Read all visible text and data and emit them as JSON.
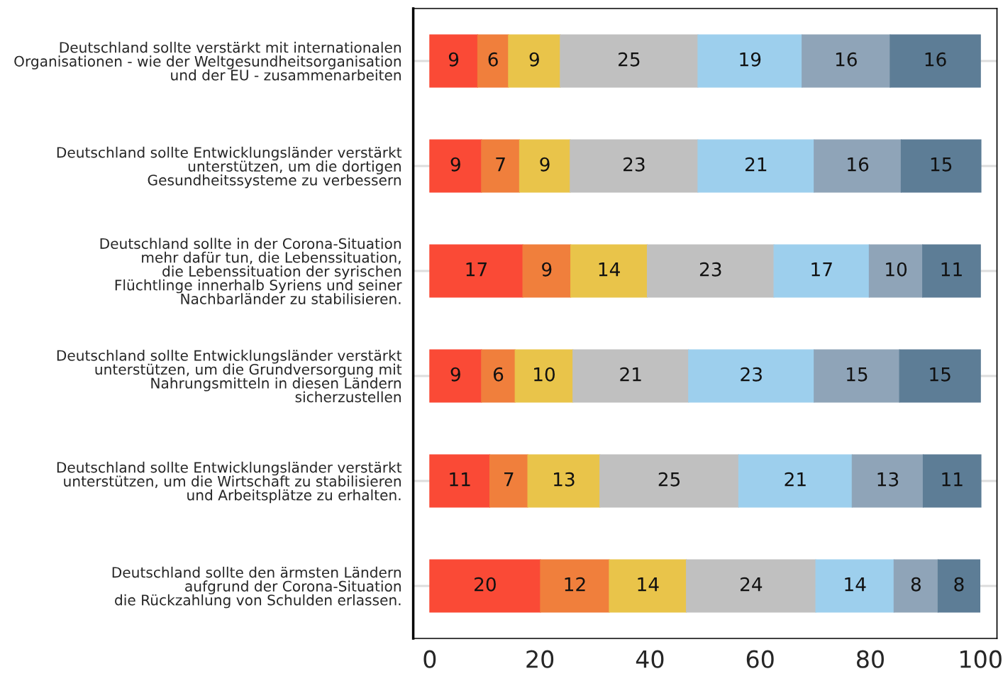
{
  "chart_data": {
    "type": "bar",
    "orientation": "horizontal",
    "stacked": true,
    "grid": "y",
    "legend": false,
    "categories": [
      "Deutschland sollte verstärkt mit internationalen\nOrganisationen - wie der Weltgesundheitsorganisation\nund der EU - zusammenarbeiten",
      "Deutschland sollte Entwicklungsländer verstärkt\nunterstützen, um die dortigen\nGesundheitssysteme zu verbessern",
      "Deutschland sollte in der Corona-Situation\nmehr dafür tun, die Lebenssituation,\ndie Lebenssituation der syrischen\nFlüchtlinge innerhalb Syriens und seiner\nNachbarländer zu stabilisieren.",
      "Deutschland sollte Entwicklungsländer verstärkt\nunterstützen, um die Grundversorgung mit\nNahrungsmitteln in diesen Ländern\nsicherzustellen",
      "Deutschland sollte Entwicklungsländer verstärkt\nunterstützen, um die Wirtschaft zu stabilisieren\nund Arbeitsplätze zu erhalten.",
      "Deutschland sollte den ärmsten Ländern\naufgrund der Corona-Situation\ndie Rückzahlung von Schulden erlassen."
    ],
    "xlim": [
      -3,
      103
    ],
    "xticks": [
      0,
      20,
      40,
      60,
      80,
      100
    ],
    "series": [
      {
        "color": "#fa4a36",
        "values": [
          8.7,
          9.4,
          16.9,
          9.4,
          10.9,
          20.1
        ],
        "value_labels": [
          "9",
          "9",
          "17",
          "9",
          "11",
          "20"
        ]
      },
      {
        "color": "#f07f3c",
        "values": [
          5.6,
          6.9,
          8.7,
          6.1,
          6.9,
          12.5
        ],
        "value_labels": [
          "6",
          "7",
          "9",
          "6",
          "7",
          "12"
        ]
      },
      {
        "color": "#e9c44a",
        "values": [
          9.4,
          9.2,
          13.9,
          10.5,
          13.1,
          14.0
        ],
        "value_labels": [
          "9",
          "9",
          "14",
          "10",
          "13",
          "14"
        ]
      },
      {
        "color": "#c0c0c0",
        "values": [
          25.0,
          23.2,
          23.0,
          21.0,
          25.2,
          23.5
        ],
        "value_labels": [
          "25",
          "23",
          "23",
          "21",
          "25",
          "24"
        ]
      },
      {
        "color": "#9dcfed",
        "values": [
          18.9,
          21.1,
          17.3,
          22.8,
          20.6,
          14.2
        ],
        "value_labels": [
          "19",
          "21",
          "17",
          "23",
          "21",
          "14"
        ]
      },
      {
        "color": "#8fa4b8",
        "values": [
          16.0,
          15.8,
          9.7,
          15.5,
          12.9,
          8.0
        ],
        "value_labels": [
          "16",
          "16",
          "10",
          "15",
          "13",
          "8"
        ]
      },
      {
        "color": "#5d7d96",
        "values": [
          16.4,
          14.5,
          10.5,
          14.7,
          10.5,
          7.6
        ],
        "value_labels": [
          "16",
          "15",
          "11",
          "15",
          "11",
          "8"
        ]
      }
    ]
  }
}
